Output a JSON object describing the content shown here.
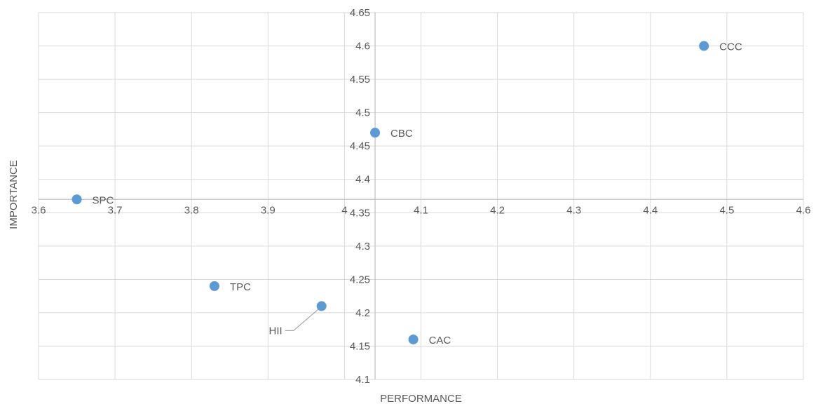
{
  "chart_data": {
    "type": "scatter",
    "title": "",
    "xlabel": "PERFORMANCE",
    "ylabel": "IMPORTANCE",
    "xlim": [
      3.6,
      4.6
    ],
    "ylim": [
      4.1,
      4.65
    ],
    "x_ticks": [
      "3.6",
      "3.7",
      "3.8",
      "3.9",
      "4",
      "4.1",
      "4.2",
      "4.3",
      "4.4",
      "4.5",
      "4.6"
    ],
    "y_ticks": [
      "4.1",
      "4.15",
      "4.2",
      "4.25",
      "4.3",
      "4.35",
      "4.4",
      "4.45",
      "4.5",
      "4.55",
      "4.6",
      "4.65"
    ],
    "x_ticks_numeric": [
      3.6,
      3.7,
      3.8,
      3.9,
      4.0,
      4.1,
      4.2,
      4.3,
      4.4,
      4.5,
      4.6
    ],
    "y_ticks_numeric": [
      4.1,
      4.15,
      4.2,
      4.25,
      4.3,
      4.35,
      4.4,
      4.45,
      4.5,
      4.55,
      4.6,
      4.65
    ],
    "axis_crossing": {
      "x": 4.04,
      "y": 4.37
    },
    "grid": true,
    "point_color": "#5B9BD5",
    "points": [
      {
        "label": "CCC",
        "x": 4.47,
        "y": 4.6
      },
      {
        "label": "CBC",
        "x": 4.04,
        "y": 4.47
      },
      {
        "label": "SPC",
        "x": 3.65,
        "y": 4.37
      },
      {
        "label": "TPC",
        "x": 3.83,
        "y": 4.24
      },
      {
        "label": "HII",
        "x": 3.97,
        "y": 4.21
      },
      {
        "label": "CAC",
        "x": 4.09,
        "y": 4.16
      }
    ]
  }
}
